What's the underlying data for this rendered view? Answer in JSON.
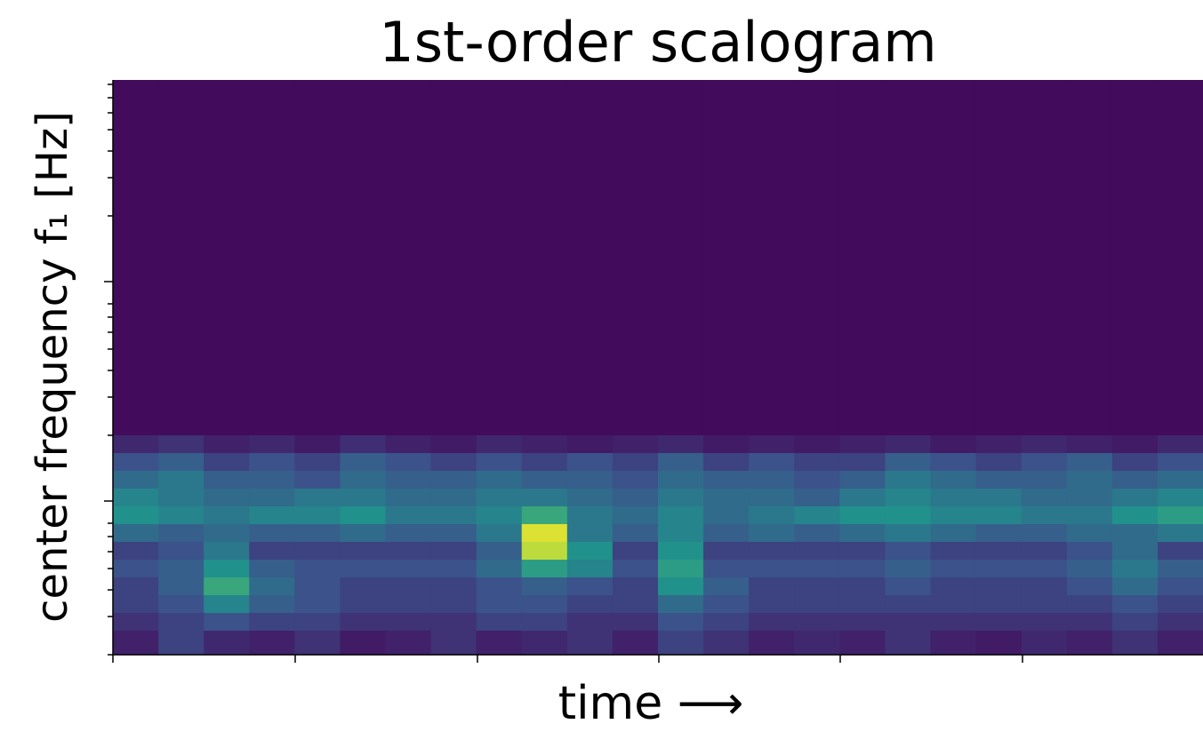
{
  "chart_data": {
    "type": "heatmap",
    "title": "1st-order scalogram",
    "xlabel": "time ⟶",
    "ylabel": "center frequency f₁ [Hz]",
    "colormap": "viridis",
    "z": [
      [
        0.03,
        0.03,
        0.03,
        0.03,
        0.03,
        0.03,
        0.03,
        0.03,
        0.03,
        0.03,
        0.03,
        0.03,
        0.03,
        0.03,
        0.03,
        0.03,
        0.03,
        0.03,
        0.03,
        0.03,
        0.03,
        0.03,
        0.03,
        0.03
      ],
      [
        0.12,
        0.15,
        0.1,
        0.12,
        0.08,
        0.14,
        0.1,
        0.08,
        0.12,
        0.1,
        0.08,
        0.1,
        0.12,
        0.08,
        0.1,
        0.08,
        0.1,
        0.12,
        0.08,
        0.1,
        0.12,
        0.1,
        0.08,
        0.12
      ],
      [
        0.25,
        0.3,
        0.2,
        0.25,
        0.2,
        0.3,
        0.25,
        0.2,
        0.25,
        0.2,
        0.25,
        0.2,
        0.3,
        0.2,
        0.25,
        0.2,
        0.2,
        0.3,
        0.25,
        0.2,
        0.25,
        0.3,
        0.2,
        0.25
      ],
      [
        0.35,
        0.4,
        0.3,
        0.3,
        0.25,
        0.35,
        0.3,
        0.3,
        0.35,
        0.3,
        0.3,
        0.25,
        0.35,
        0.3,
        0.3,
        0.25,
        0.3,
        0.4,
        0.35,
        0.3,
        0.3,
        0.35,
        0.3,
        0.35
      ],
      [
        0.45,
        0.4,
        0.35,
        0.35,
        0.4,
        0.4,
        0.35,
        0.35,
        0.4,
        0.4,
        0.35,
        0.3,
        0.4,
        0.35,
        0.35,
        0.3,
        0.4,
        0.45,
        0.4,
        0.4,
        0.35,
        0.35,
        0.4,
        0.45
      ],
      [
        0.5,
        0.45,
        0.4,
        0.45,
        0.45,
        0.5,
        0.4,
        0.4,
        0.45,
        0.6,
        0.4,
        0.35,
        0.45,
        0.35,
        0.4,
        0.45,
        0.5,
        0.5,
        0.45,
        0.45,
        0.4,
        0.4,
        0.5,
        0.55
      ],
      [
        0.35,
        0.3,
        0.35,
        0.3,
        0.3,
        0.35,
        0.3,
        0.3,
        0.4,
        0.95,
        0.4,
        0.3,
        0.45,
        0.3,
        0.35,
        0.3,
        0.35,
        0.4,
        0.35,
        0.3,
        0.3,
        0.35,
        0.35,
        0.4
      ],
      [
        0.2,
        0.25,
        0.4,
        0.2,
        0.2,
        0.2,
        0.2,
        0.2,
        0.3,
        0.9,
        0.5,
        0.2,
        0.5,
        0.2,
        0.2,
        0.2,
        0.2,
        0.25,
        0.2,
        0.2,
        0.2,
        0.25,
        0.35,
        0.2
      ],
      [
        0.25,
        0.3,
        0.5,
        0.3,
        0.25,
        0.25,
        0.25,
        0.25,
        0.35,
        0.55,
        0.45,
        0.25,
        0.55,
        0.25,
        0.25,
        0.25,
        0.25,
        0.3,
        0.25,
        0.25,
        0.25,
        0.3,
        0.4,
        0.3
      ],
      [
        0.2,
        0.3,
        0.6,
        0.35,
        0.25,
        0.2,
        0.2,
        0.2,
        0.25,
        0.3,
        0.25,
        0.2,
        0.5,
        0.3,
        0.2,
        0.2,
        0.2,
        0.25,
        0.2,
        0.2,
        0.2,
        0.25,
        0.35,
        0.25
      ],
      [
        0.2,
        0.25,
        0.45,
        0.3,
        0.25,
        0.2,
        0.2,
        0.2,
        0.25,
        0.25,
        0.2,
        0.2,
        0.35,
        0.25,
        0.2,
        0.2,
        0.2,
        0.2,
        0.2,
        0.2,
        0.2,
        0.2,
        0.25,
        0.2
      ],
      [
        0.15,
        0.2,
        0.25,
        0.2,
        0.2,
        0.15,
        0.15,
        0.15,
        0.2,
        0.2,
        0.15,
        0.15,
        0.25,
        0.2,
        0.15,
        0.15,
        0.15,
        0.15,
        0.15,
        0.15,
        0.15,
        0.15,
        0.2,
        0.15
      ],
      [
        0.1,
        0.2,
        0.12,
        0.1,
        0.15,
        0.08,
        0.1,
        0.15,
        0.1,
        0.12,
        0.15,
        0.1,
        0.2,
        0.15,
        0.1,
        0.12,
        0.1,
        0.15,
        0.1,
        0.08,
        0.12,
        0.1,
        0.15,
        0.1
      ]
    ]
  }
}
